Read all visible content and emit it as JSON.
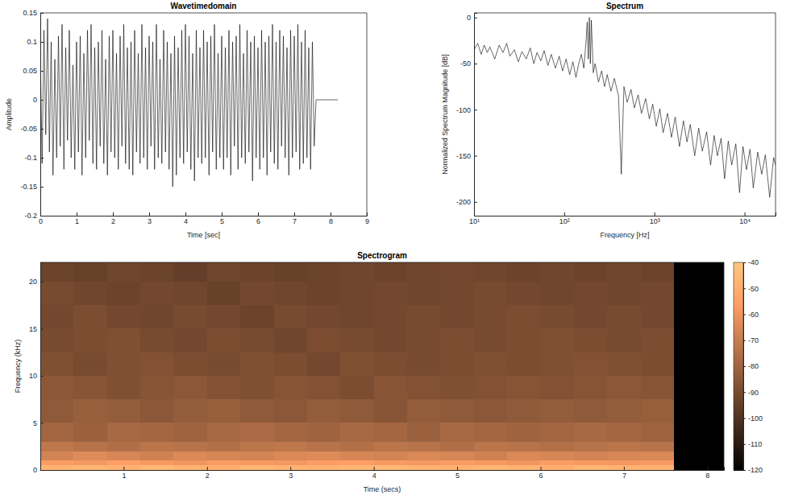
{
  "chart_data": [
    {
      "type": "line",
      "title": "Wavetimedomain",
      "xlabel": "Time [sec]",
      "ylabel": "Amplitude",
      "color": "#000000",
      "grid": false,
      "xlim": [
        0,
        9
      ],
      "xticks": [
        0,
        1,
        2,
        3,
        4,
        5,
        6,
        7,
        8,
        9
      ],
      "ylim": [
        -0.2,
        0.15
      ],
      "yticks": [
        -0.2,
        -0.15,
        -0.1,
        -0.05,
        0,
        0.05,
        0.1,
        0.15
      ],
      "x": [
        0,
        0.05,
        0.1,
        0.15,
        0.2,
        0.25,
        0.3,
        0.35,
        0.4,
        0.45,
        0.5,
        0.55,
        0.6,
        0.65,
        0.7,
        0.75,
        0.8,
        0.85,
        0.9,
        0.95,
        1,
        1.05,
        1.1,
        1.15,
        1.2,
        1.25,
        1.3,
        1.35,
        1.4,
        1.45,
        1.5,
        1.55,
        1.6,
        1.65,
        1.7,
        1.75,
        1.8,
        1.85,
        1.9,
        1.95,
        2,
        2.05,
        2.1,
        2.15,
        2.2,
        2.25,
        2.3,
        2.35,
        2.4,
        2.45,
        2.5,
        2.55,
        2.6,
        2.65,
        2.7,
        2.75,
        2.8,
        2.85,
        2.9,
        2.95,
        3,
        3.05,
        3.1,
        3.15,
        3.2,
        3.25,
        3.3,
        3.35,
        3.4,
        3.45,
        3.5,
        3.55,
        3.6,
        3.65,
        3.7,
        3.75,
        3.8,
        3.85,
        3.9,
        3.95,
        4,
        4.05,
        4.1,
        4.15,
        4.2,
        4.25,
        4.3,
        4.35,
        4.4,
        4.45,
        4.5,
        4.55,
        4.6,
        4.65,
        4.7,
        4.75,
        4.8,
        4.85,
        4.9,
        4.95,
        5,
        5.05,
        5.1,
        5.15,
        5.2,
        5.25,
        5.3,
        5.35,
        5.4,
        5.45,
        5.5,
        5.55,
        5.6,
        5.65,
        5.7,
        5.75,
        5.8,
        5.85,
        5.9,
        5.95,
        6,
        6.05,
        6.1,
        6.15,
        6.2,
        6.25,
        6.3,
        6.35,
        6.4,
        6.45,
        6.5,
        6.55,
        6.6,
        6.65,
        6.7,
        6.75,
        6.8,
        6.85,
        6.9,
        6.95,
        7,
        7.05,
        7.1,
        7.15,
        7.2,
        7.25,
        7.3,
        7.35,
        7.4,
        7.45,
        7.5,
        7.55,
        7.6,
        8.2
      ],
      "values": [
        0.08,
        -0.11,
        0.12,
        -0.06,
        0.14,
        -0.09,
        0.1,
        -0.13,
        0.07,
        -0.1,
        0.11,
        -0.08,
        0.13,
        -0.12,
        0.09,
        -0.07,
        0.12,
        -0.1,
        0.06,
        -0.12,
        0.1,
        -0.09,
        0.11,
        -0.13,
        0.08,
        -0.1,
        0.12,
        -0.07,
        0.13,
        -0.11,
        0.09,
        -0.12,
        0.1,
        -0.08,
        0.12,
        -0.11,
        0.07,
        -0.13,
        0.11,
        -0.09,
        0.12,
        -0.1,
        0.08,
        -0.12,
        0.11,
        -0.08,
        0.13,
        -0.11,
        0.09,
        -0.12,
        0.1,
        -0.13,
        0.12,
        -0.09,
        0.08,
        -0.11,
        0.13,
        -0.1,
        0.09,
        -0.12,
        0.11,
        -0.08,
        0.1,
        -0.12,
        0.13,
        -0.1,
        0.07,
        -0.11,
        0.12,
        -0.09,
        0.1,
        -0.12,
        0.08,
        -0.15,
        0.11,
        -0.13,
        0.09,
        -0.1,
        0.12,
        -0.11,
        0.13,
        -0.09,
        0.11,
        -0.12,
        0.08,
        -0.14,
        0.12,
        -0.1,
        0.09,
        -0.11,
        0.12,
        -0.1,
        0.1,
        -0.13,
        0.11,
        -0.09,
        0.13,
        -0.12,
        0.08,
        -0.1,
        0.11,
        -0.12,
        0.09,
        -0.1,
        0.12,
        -0.13,
        0.1,
        -0.08,
        0.11,
        -0.12,
        0.13,
        -0.1,
        0.08,
        -0.11,
        0.12,
        -0.09,
        0.1,
        -0.14,
        0.11,
        -0.1,
        0.09,
        -0.12,
        0.12,
        -0.1,
        0.1,
        -0.13,
        0.11,
        -0.09,
        0.13,
        -0.11,
        0.1,
        -0.12,
        0.12,
        -0.08,
        0.11,
        -0.1,
        0.09,
        -0.13,
        0.12,
        -0.1,
        0.11,
        -0.09,
        0.13,
        -0.12,
        0.1,
        -0.11,
        0.12,
        -0.1,
        0.09,
        -0.12,
        0.1,
        -0.08,
        0,
        0
      ]
    },
    {
      "type": "line",
      "title": "Spectrum",
      "xlabel": "Frequency [Hz]",
      "ylabel": "Normalized Spectrum Magnitude [dB]",
      "color": "#000000",
      "log": "x",
      "grid": false,
      "xlim": [
        10,
        22050
      ],
      "xticks": [
        {
          "value": 10,
          "label": "10¹"
        },
        {
          "value": 100,
          "label": "10²"
        },
        {
          "value": 1000,
          "label": "10³"
        },
        {
          "value": 10000,
          "label": "10⁴"
        }
      ],
      "ylim": [
        -215,
        5
      ],
      "yticks": [
        -200,
        -150,
        -100,
        -50,
        0
      ],
      "x": [
        10,
        11,
        12,
        13,
        14,
        15,
        17,
        19,
        21,
        23,
        25,
        28,
        31,
        34,
        38,
        42,
        46,
        50,
        55,
        60,
        66,
        72,
        80,
        88,
        96,
        105,
        115,
        125,
        135,
        145,
        155,
        165,
        175,
        180,
        185,
        190,
        195,
        200,
        210,
        220,
        240,
        260,
        280,
        300,
        330,
        360,
        400,
        430,
        460,
        500,
        550,
        600,
        660,
        720,
        800,
        880,
        960,
        1050,
        1150,
        1250,
        1400,
        1550,
        1700,
        1900,
        2100,
        2300,
        2500,
        2800,
        3100,
        3400,
        3800,
        4200,
        4600,
        5000,
        5500,
        6000,
        6600,
        7200,
        8000,
        8800,
        9600,
        10500,
        11500,
        12500,
        14000,
        15500,
        17000,
        19000,
        21000,
        22050
      ],
      "values": [
        -35,
        -28,
        -40,
        -30,
        -38,
        -32,
        -45,
        -30,
        -38,
        -28,
        -42,
        -35,
        -48,
        -37,
        -45,
        -33,
        -50,
        -38,
        -47,
        -36,
        -52,
        -40,
        -55,
        -42,
        -58,
        -45,
        -62,
        -48,
        -65,
        -50,
        -40,
        -55,
        -25,
        -5,
        -45,
        0,
        -50,
        -3,
        -60,
        -50,
        -70,
        -58,
        -75,
        -62,
        -80,
        -66,
        -85,
        -170,
        -75,
        -92,
        -78,
        -98,
        -84,
        -104,
        -88,
        -110,
        -94,
        -118,
        -99,
        -125,
        -104,
        -130,
        -108,
        -140,
        -112,
        -135,
        -116,
        -150,
        -120,
        -145,
        -124,
        -160,
        -128,
        -150,
        -131,
        -175,
        -134,
        -160,
        -137,
        -190,
        -140,
        -165,
        -143,
        -185,
        -146,
        -170,
        -149,
        -195,
        -152,
        -160
      ]
    },
    {
      "type": "heatmap",
      "title": "Spectrogram",
      "xlabel": "Time (secs)",
      "ylabel": "Frequency (kHz)",
      "grid": false,
      "xlim": [
        0,
        8.2
      ],
      "xticks": [
        1,
        2,
        3,
        4,
        5,
        6,
        7,
        8
      ],
      "ylim": [
        0,
        22.05
      ],
      "yticks": [
        0,
        5,
        10,
        15,
        20
      ],
      "time_bins": [
        0,
        0.4,
        0.8,
        1.2,
        1.6,
        2,
        2.4,
        2.8,
        3.2,
        3.6,
        4,
        4.4,
        4.8,
        5.2,
        5.6,
        6,
        6.4,
        6.8,
        7.2,
        7.6,
        8.2
      ],
      "freq_bins": [
        0,
        0.5,
        1,
        2,
        3,
        5,
        7.5,
        10,
        12.5,
        15,
        17.5,
        20,
        22.05
      ],
      "cells": [
        [
          -48,
          -47,
          -49,
          -46,
          -48,
          -50,
          -47,
          -48,
          -49,
          -47,
          -46,
          -48,
          -49,
          -47,
          -48,
          -50,
          -47,
          -48,
          -49,
          -120
        ],
        [
          -57,
          -59,
          -56,
          -58,
          -60,
          -57,
          -58,
          -59,
          -57,
          -56,
          -58,
          -59,
          -57,
          -58,
          -60,
          -57,
          -58,
          -59,
          -58,
          -120
        ],
        [
          -67,
          -64,
          -66,
          -68,
          -65,
          -66,
          -67,
          -65,
          -64,
          -66,
          -67,
          -65,
          -66,
          -68,
          -65,
          -66,
          -67,
          -66,
          -65,
          -120
        ],
        [
          -72,
          -74,
          -76,
          -73,
          -74,
          -75,
          -73,
          -72,
          -74,
          -75,
          -73,
          -74,
          -76,
          -73,
          -74,
          -75,
          -74,
          -73,
          -74,
          -120
        ],
        [
          -79,
          -81,
          -78,
          -79,
          -80,
          -78,
          -77,
          -79,
          -80,
          -78,
          -79,
          -81,
          -78,
          -79,
          -80,
          -79,
          -78,
          -79,
          -80,
          -120
        ],
        [
          -84,
          -82,
          -83,
          -85,
          -83,
          -82,
          -84,
          -85,
          -83,
          -84,
          -86,
          -83,
          -84,
          -85,
          -84,
          -83,
          -84,
          -83,
          -82,
          -120
        ],
        [
          -85,
          -86,
          -88,
          -86,
          -85,
          -87,
          -88,
          -86,
          -87,
          -89,
          -86,
          -87,
          -88,
          -87,
          -86,
          -87,
          -86,
          -85,
          -86,
          -120
        ],
        [
          -88,
          -90,
          -88,
          -87,
          -89,
          -90,
          -88,
          -89,
          -91,
          -88,
          -89,
          -90,
          -89,
          -88,
          -89,
          -88,
          -87,
          -88,
          -89,
          -120
        ],
        [
          -90,
          -89,
          -88,
          -90,
          -91,
          -89,
          -90,
          -92,
          -89,
          -90,
          -91,
          -90,
          -89,
          -90,
          -89,
          -88,
          -89,
          -90,
          -89,
          -120
        ],
        [
          -91,
          -89,
          -91,
          -92,
          -90,
          -91,
          -93,
          -90,
          -91,
          -92,
          -91,
          -90,
          -91,
          -90,
          -89,
          -90,
          -91,
          -90,
          -91,
          -120
        ],
        [
          -90,
          -92,
          -93,
          -91,
          -92,
          -94,
          -91,
          -92,
          -93,
          -92,
          -91,
          -92,
          -91,
          -90,
          -91,
          -92,
          -91,
          -92,
          -91,
          -120
        ],
        [
          -93,
          -94,
          -92,
          -93,
          -95,
          -92,
          -93,
          -94,
          -93,
          -92,
          -93,
          -92,
          -91,
          -92,
          -93,
          -92,
          -93,
          -92,
          -93,
          -120
        ]
      ],
      "colorbar_lim": [
        -120,
        -40
      ],
      "colorbar_ticks": [
        -40,
        -50,
        -60,
        -70,
        -80,
        -90,
        -100,
        -110,
        -120
      ]
    }
  ]
}
